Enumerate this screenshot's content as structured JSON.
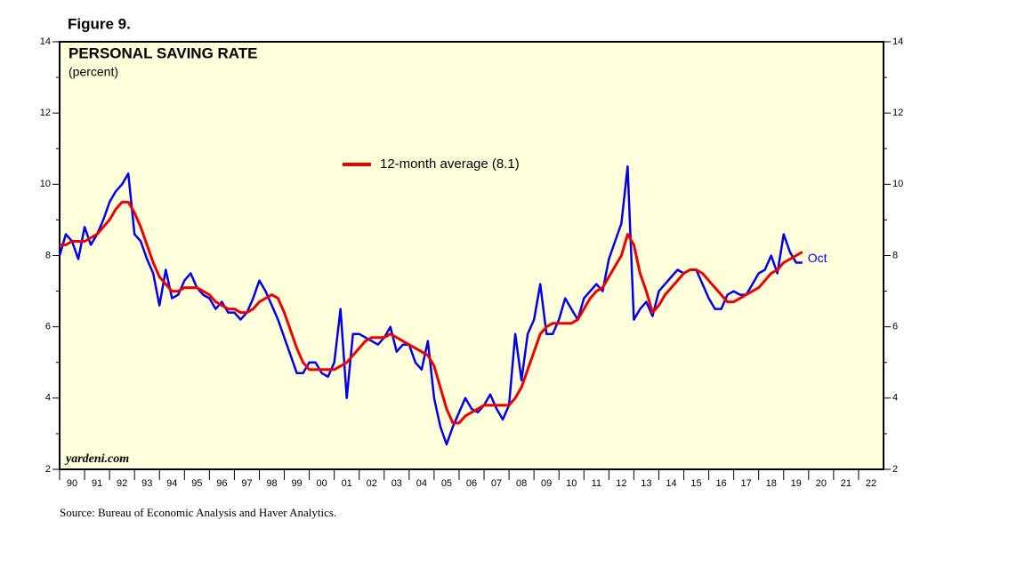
{
  "chart_data": {
    "type": "line",
    "figure_label": "Figure 9.",
    "title": "PERSONAL SAVING RATE",
    "subtitle": "(percent)",
    "watermark": "yardeni.com",
    "source": "Source: Bureau of Economic Analysis and Haver Analytics.",
    "annotation": "Oct",
    "x": [
      1990,
      1990.25,
      1990.5,
      1990.75,
      1991,
      1991.25,
      1991.5,
      1991.75,
      1992,
      1992.25,
      1992.5,
      1992.75,
      1993,
      1993.25,
      1993.5,
      1993.75,
      1994,
      1994.25,
      1994.5,
      1994.75,
      1995,
      1995.25,
      1995.5,
      1995.75,
      1996,
      1996.25,
      1996.5,
      1996.75,
      1997,
      1997.25,
      1997.5,
      1997.75,
      1998,
      1998.25,
      1998.5,
      1998.75,
      1999,
      1999.25,
      1999.5,
      1999.75,
      2000,
      2000.25,
      2000.5,
      2000.75,
      2001,
      2001.25,
      2001.5,
      2001.75,
      2002,
      2002.25,
      2002.5,
      2002.75,
      2003,
      2003.25,
      2003.5,
      2003.75,
      2004,
      2004.25,
      2004.5,
      2004.75,
      2005,
      2005.25,
      2005.5,
      2005.75,
      2006,
      2006.25,
      2006.5,
      2006.75,
      2007,
      2007.25,
      2007.5,
      2007.75,
      2008,
      2008.25,
      2008.5,
      2008.75,
      2009,
      2009.25,
      2009.5,
      2009.75,
      2010,
      2010.25,
      2010.5,
      2010.75,
      2011,
      2011.25,
      2011.5,
      2011.75,
      2012,
      2012.25,
      2012.5,
      2012.75,
      2013,
      2013.25,
      2013.5,
      2013.75,
      2014,
      2014.25,
      2014.5,
      2014.75,
      2015,
      2015.25,
      2015.5,
      2015.75,
      2016,
      2016.25,
      2016.5,
      2016.75,
      2017,
      2017.25,
      2017.5,
      2017.75,
      2018,
      2018.25,
      2018.5,
      2018.75,
      2019,
      2019.25,
      2019.5,
      2019.75
    ],
    "series": [
      {
        "color": "#0000ee",
        "values": [
          8.0,
          8.6,
          8.4,
          7.9,
          8.8,
          8.3,
          8.6,
          9.0,
          9.5,
          9.8,
          10.0,
          10.3,
          8.6,
          8.4,
          7.9,
          7.5,
          6.6,
          7.6,
          6.8,
          6.9,
          7.3,
          7.5,
          7.1,
          6.9,
          6.8,
          6.5,
          6.7,
          6.4,
          6.4,
          6.2,
          6.4,
          6.8,
          7.3,
          7.0,
          6.6,
          6.2,
          5.7,
          5.2,
          4.7,
          4.7,
          5.0,
          5.0,
          4.7,
          4.6,
          5.0,
          6.5,
          4.0,
          5.8,
          5.8,
          5.7,
          5.6,
          5.5,
          5.7,
          6.0,
          5.3,
          5.5,
          5.5,
          5.0,
          4.8,
          5.6,
          4.0,
          3.2,
          2.7,
          3.2,
          3.6,
          4.0,
          3.7,
          3.6,
          3.8,
          4.1,
          3.7,
          3.4,
          3.8,
          5.8,
          4.5,
          5.8,
          6.2,
          7.2,
          5.8,
          5.8,
          6.2,
          6.8,
          6.5,
          6.2,
          6.8,
          7.0,
          7.2,
          7.0,
          7.9,
          8.4,
          8.9,
          10.5,
          6.2,
          6.5,
          6.7,
          6.3,
          7.0,
          7.2,
          7.4,
          7.6,
          7.5,
          7.6,
          7.6,
          7.2,
          6.8,
          6.5,
          6.5,
          6.9,
          7.0,
          6.9,
          6.9,
          7.2,
          7.5,
          7.6,
          8.0,
          7.5,
          8.6,
          8.1,
          7.8,
          7.8
        ]
      },
      {
        "name": "12-month average (8.1)",
        "color": "#ee0000",
        "values": [
          8.3,
          8.3,
          8.4,
          8.4,
          8.4,
          8.5,
          8.6,
          8.8,
          9.0,
          9.3,
          9.5,
          9.5,
          9.2,
          8.8,
          8.3,
          7.8,
          7.4,
          7.2,
          7.0,
          7.0,
          7.1,
          7.1,
          7.1,
          7.0,
          6.9,
          6.7,
          6.6,
          6.5,
          6.5,
          6.4,
          6.4,
          6.5,
          6.7,
          6.8,
          6.9,
          6.8,
          6.4,
          5.9,
          5.4,
          5.0,
          4.8,
          4.8,
          4.8,
          4.8,
          4.8,
          4.9,
          5.0,
          5.2,
          5.4,
          5.6,
          5.7,
          5.7,
          5.7,
          5.8,
          5.7,
          5.6,
          5.5,
          5.4,
          5.3,
          5.2,
          4.9,
          4.3,
          3.7,
          3.3,
          3.3,
          3.5,
          3.6,
          3.7,
          3.8,
          3.8,
          3.8,
          3.8,
          3.8,
          4.0,
          4.3,
          4.8,
          5.3,
          5.8,
          6.0,
          6.1,
          6.1,
          6.1,
          6.1,
          6.2,
          6.5,
          6.8,
          7.0,
          7.1,
          7.4,
          7.7,
          8.0,
          8.6,
          8.3,
          7.5,
          7.0,
          6.4,
          6.6,
          6.9,
          7.1,
          7.3,
          7.5,
          7.6,
          7.6,
          7.5,
          7.3,
          7.1,
          6.9,
          6.7,
          6.7,
          6.8,
          6.9,
          7.0,
          7.1,
          7.3,
          7.5,
          7.6,
          7.8,
          7.9,
          8.0,
          8.1
        ]
      }
    ],
    "xlim": [
      1990,
      2023
    ],
    "xticks": [
      {
        "value": 1990,
        "label": "90"
      },
      {
        "value": 1991,
        "label": "91"
      },
      {
        "value": 1992,
        "label": "92"
      },
      {
        "value": 1993,
        "label": "93"
      },
      {
        "value": 1994,
        "label": "94"
      },
      {
        "value": 1995,
        "label": "95"
      },
      {
        "value": 1996,
        "label": "96"
      },
      {
        "value": 1997,
        "label": "97"
      },
      {
        "value": 1998,
        "label": "98"
      },
      {
        "value": 1999,
        "label": "99"
      },
      {
        "value": 2000,
        "label": "00"
      },
      {
        "value": 2001,
        "label": "01"
      },
      {
        "value": 2002,
        "label": "02"
      },
      {
        "value": 2003,
        "label": "03"
      },
      {
        "value": 2004,
        "label": "04"
      },
      {
        "value": 2005,
        "label": "05"
      },
      {
        "value": 2006,
        "label": "06"
      },
      {
        "value": 2007,
        "label": "07"
      },
      {
        "value": 2008,
        "label": "08"
      },
      {
        "value": 2009,
        "label": "09"
      },
      {
        "value": 2010,
        "label": "10"
      },
      {
        "value": 2011,
        "label": "11"
      },
      {
        "value": 2012,
        "label": "12"
      },
      {
        "value": 2013,
        "label": "13"
      },
      {
        "value": 2014,
        "label": "14"
      },
      {
        "value": 2015,
        "label": "15"
      },
      {
        "value": 2016,
        "label": "16"
      },
      {
        "value": 2017,
        "label": "17"
      },
      {
        "value": 2018,
        "label": "18"
      },
      {
        "value": 2019,
        "label": "19"
      },
      {
        "value": 2020,
        "label": "20"
      },
      {
        "value": 2021,
        "label": "21"
      },
      {
        "value": 2022,
        "label": "22"
      }
    ],
    "ylim": [
      2,
      14
    ],
    "yticks": [
      2,
      4,
      6,
      8,
      10,
      12,
      14
    ],
    "y2lim": [
      2,
      14
    ],
    "y2ticks": [
      2,
      4,
      6,
      8,
      10,
      12,
      14
    ],
    "background": "#ffffdc"
  }
}
